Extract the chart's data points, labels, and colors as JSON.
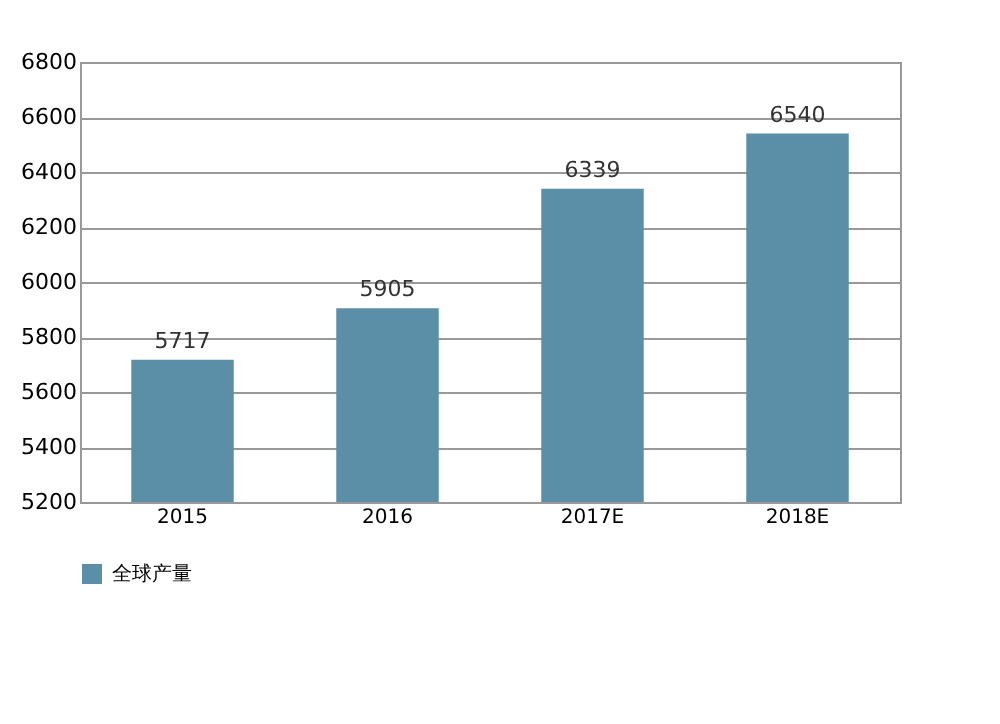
{
  "chart_data": {
    "type": "bar",
    "categories": [
      "2015",
      "2016",
      "2017E",
      "2018E"
    ],
    "series": [
      {
        "name": "全球产量",
        "color": "#5b8fa8",
        "values": [
          5717,
          5905,
          6339,
          6540
        ]
      }
    ],
    "ylim": [
      5200,
      6800
    ],
    "yticks": [
      5200,
      5400,
      5600,
      5800,
      6000,
      6200,
      6400,
      6600,
      6800
    ],
    "grid": "y",
    "legend": "bottom",
    "data_labels": true
  }
}
